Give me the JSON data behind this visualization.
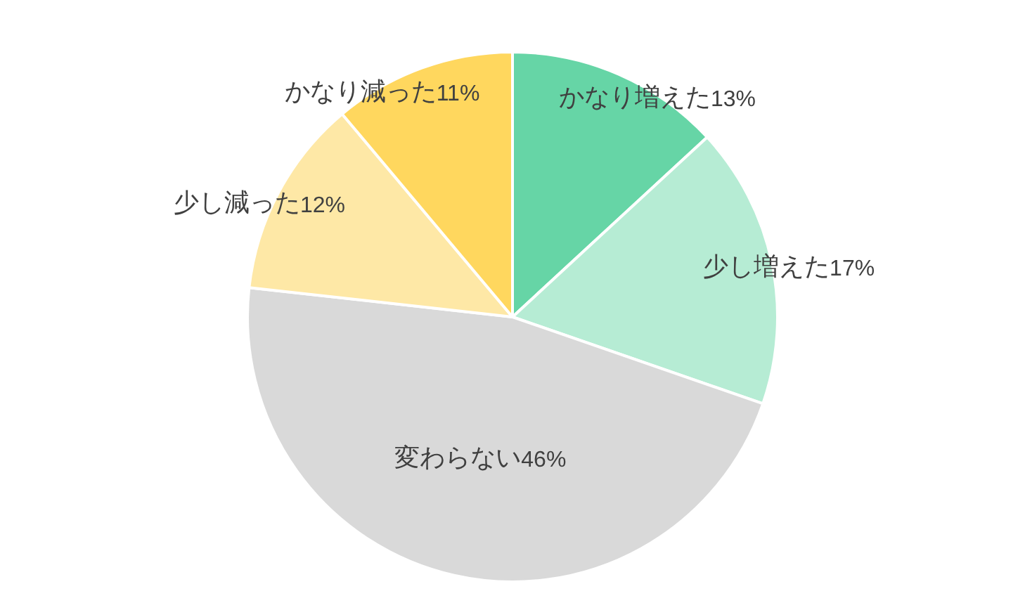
{
  "chart_data": {
    "type": "pie",
    "categories": [
      "かなり増えた",
      "少し増えた",
      "変わらない",
      "少し減った",
      "かなり減った"
    ],
    "values": [
      13,
      17,
      46,
      12,
      11
    ],
    "value_labels": [
      "13%",
      "17%",
      "46%",
      "12%",
      "11%"
    ],
    "colors": [
      "#66d5a6",
      "#b6ecd4",
      "#d9d9d9",
      "#fee8a6",
      "#ffd75e"
    ],
    "legend": false
  }
}
